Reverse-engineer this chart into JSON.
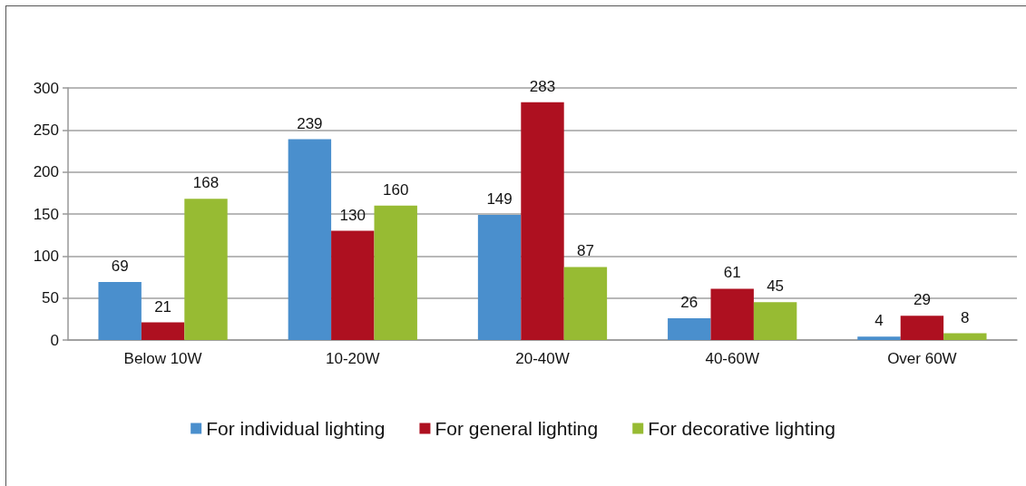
{
  "chart_data": {
    "type": "bar",
    "categories": [
      "Below 10W",
      "10-20W",
      "20-40W",
      "40-60W",
      "Over 60W"
    ],
    "series": [
      {
        "name": "For individual lighting",
        "color": "#4a8fcd",
        "values": [
          69,
          239,
          149,
          26,
          4
        ]
      },
      {
        "name": "For general lighting",
        "color": "#ae1020",
        "values": [
          21,
          130,
          283,
          61,
          29
        ]
      },
      {
        "name": "For decorative lighting",
        "color": "#97bb33",
        "values": [
          168,
          160,
          87,
          45,
          8
        ]
      }
    ],
    "ylim": [
      0,
      300
    ],
    "yticks": [
      0,
      50,
      100,
      150,
      200,
      250,
      300
    ],
    "grid": "y",
    "legend": "bottom",
    "data_labels": true
  }
}
